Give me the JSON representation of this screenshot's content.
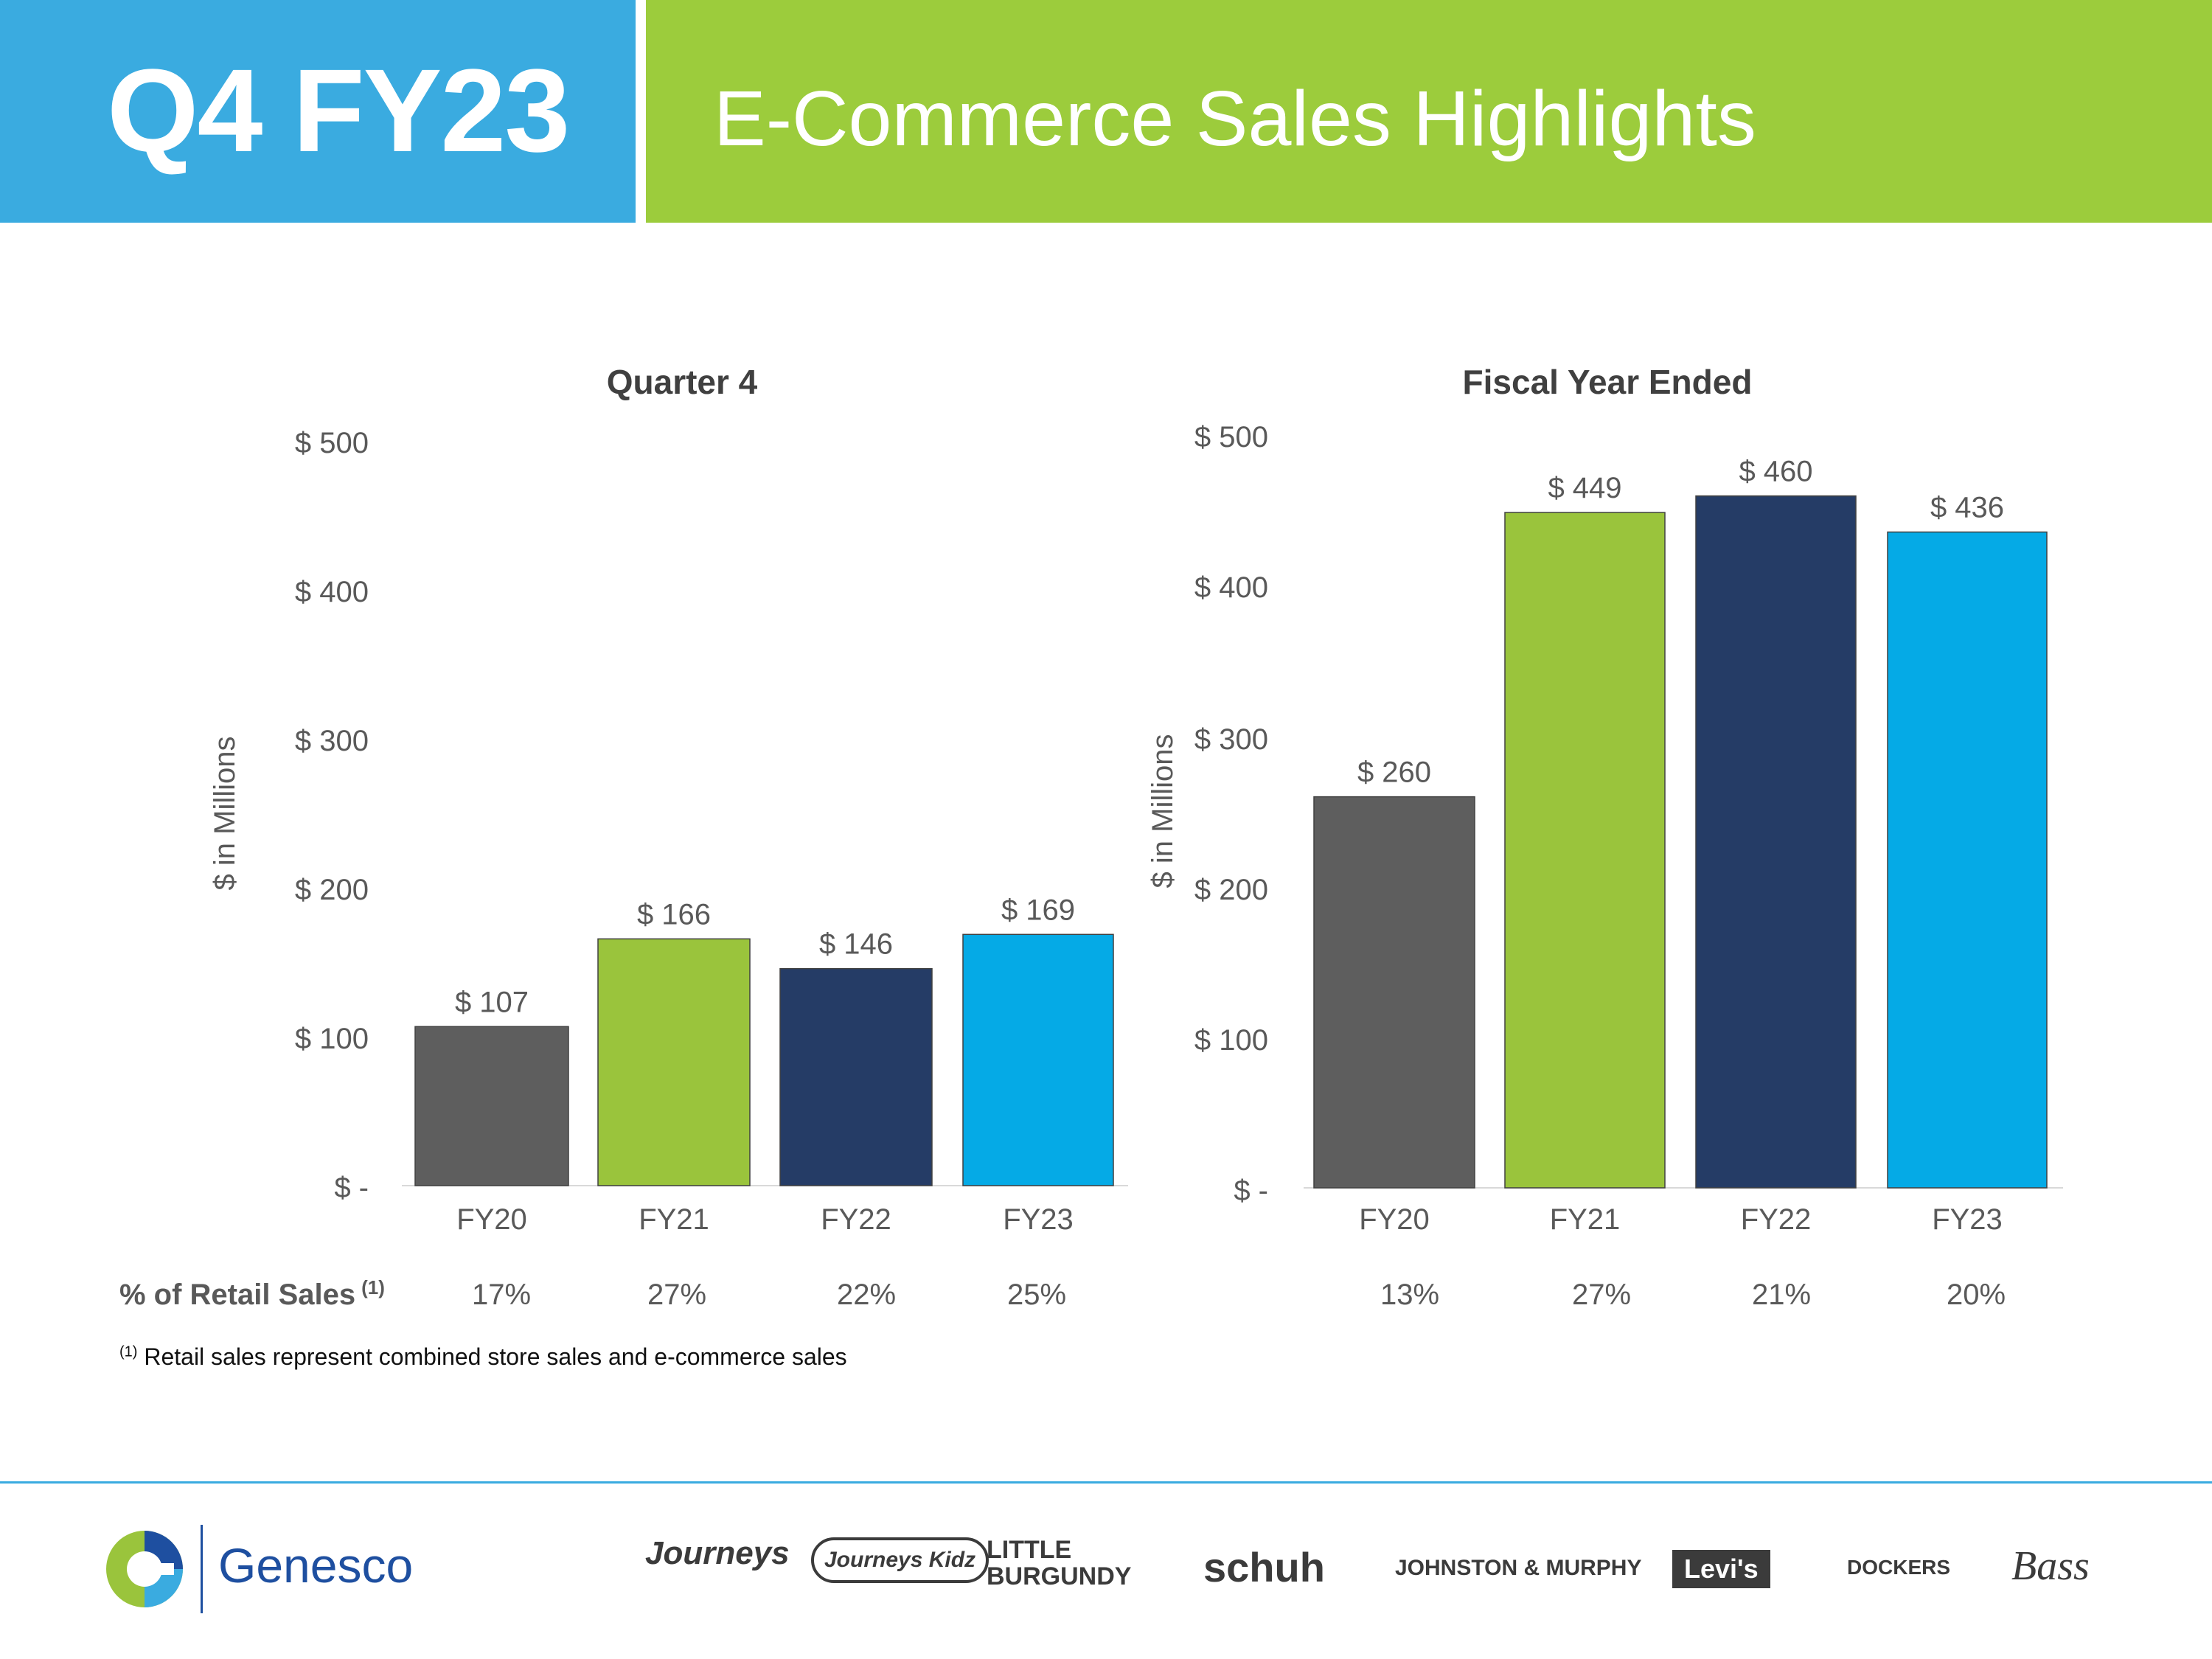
{
  "header": {
    "badge": "Q4 FY23",
    "title": "E-Commerce Sales Highlights"
  },
  "colors": {
    "header_blue": "#3aabe0",
    "header_green": "#9ccc3c",
    "fy20": "#5e5e5e",
    "fy21": "#9ac43c",
    "fy22": "#253c66",
    "fy23": "#05aae6"
  },
  "chart_data": [
    {
      "type": "bar",
      "title": "Quarter 4",
      "ylabel": "$ in Millions",
      "categories": [
        "FY20",
        "FY21",
        "FY22",
        "FY23"
      ],
      "values": [
        107,
        166,
        146,
        169
      ],
      "value_labels": [
        "$ 107",
        "$ 166",
        "$ 146",
        "$ 169"
      ],
      "yticks": [
        "$ -",
        "$ 100",
        "$ 200",
        "$ 300",
        "$ 400",
        "$ 500"
      ],
      "ylim": [
        0,
        500
      ],
      "pct_retail_sales": [
        "17%",
        "27%",
        "22%",
        "25%"
      ]
    },
    {
      "type": "bar",
      "title": "Fiscal Year Ended",
      "ylabel": "$ in Millions",
      "categories": [
        "FY20",
        "FY21",
        "FY22",
        "FY23"
      ],
      "values": [
        260,
        449,
        460,
        436
      ],
      "value_labels": [
        "$ 260",
        "$ 449",
        "$ 460",
        "$ 436"
      ],
      "yticks": [
        "$ -",
        "$ 100",
        "$ 200",
        "$ 300",
        "$ 400",
        "$ 500"
      ],
      "ylim": [
        0,
        500
      ],
      "pct_retail_sales": [
        "13%",
        "27%",
        "21%",
        "20%"
      ]
    }
  ],
  "pct_row_label": "% of Retail Sales",
  "pct_row_sup": "(1)",
  "footnote": {
    "marker": "(1)",
    "text": "Retail sales represent combined store sales and e-commerce sales"
  },
  "footer": {
    "logo": "Genesco",
    "brands": [
      "Journeys",
      "Journeys Kidz",
      "LITTLE BURGUNDY",
      "schuh",
      "JOHNSTON & MURPHY",
      "Levi's",
      "DOCKERS",
      "Bass"
    ]
  }
}
